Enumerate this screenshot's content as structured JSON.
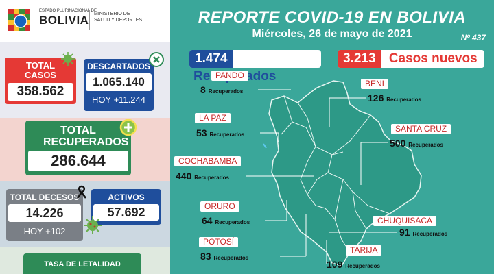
{
  "header": {
    "logo_line1": "ESTADO PLURINACIONAL DE",
    "logo_line2": "BOLIVIA",
    "ministry_line1": "MINISTERIO DE",
    "ministry_line2": "SALUD Y DEPORTES"
  },
  "report": {
    "title": "REPORTE COVID-19 EN BOLIVIA",
    "date": "Miércoles, 26 de mayo de 2021",
    "number": "Nº 437"
  },
  "summary": {
    "recuperados_num": "1.474",
    "recuperados_label": "Recuperados",
    "casos_num": "3.213",
    "casos_label": "Casos nuevos"
  },
  "stats": {
    "total_casos_label": "TOTAL CASOS",
    "total_casos_value": "358.562",
    "descartados_label": "DESCARTADOS",
    "descartados_value": "1.065.140",
    "descartados_hoy": "HOY +11.244",
    "recuperados_label": "TOTAL RECUPERADOS",
    "recuperados_value": "286.644",
    "decesos_label": "TOTAL DECESOS",
    "decesos_value": "14.226",
    "decesos_hoy": "HOY +102",
    "activos_label": "ACTIVOS",
    "activos_value": "57.692",
    "letalidad_label": "TASA DE LETALIDAD"
  },
  "departments": [
    {
      "name": "PANDO",
      "value": "8",
      "unit": "Recuperados"
    },
    {
      "name": "BENI",
      "value": "126",
      "unit": "Recuperados"
    },
    {
      "name": "LA PAZ",
      "value": "53",
      "unit": "Recuperados"
    },
    {
      "name": "SANTA CRUZ",
      "value": "500",
      "unit": "Recuperados"
    },
    {
      "name": "COCHABAMBA",
      "value": "440",
      "unit": "Recuperados"
    },
    {
      "name": "ORURO",
      "value": "64",
      "unit": "Recuperados"
    },
    {
      "name": "CHUQUISACA",
      "value": "91",
      "unit": "Recuperados"
    },
    {
      "name": "POTOSÍ",
      "value": "83",
      "unit": "Recuperados"
    },
    {
      "name": "TARIJA",
      "value": "109",
      "unit": "Recuperados"
    }
  ],
  "colors": {
    "teal": "#3aa79a",
    "red": "#e53935",
    "blue": "#1f4e9c",
    "green": "#2e8b57",
    "gray": "#7a7f86",
    "map": "#2d9987"
  }
}
